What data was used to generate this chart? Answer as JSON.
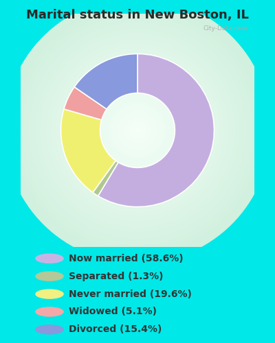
{
  "title": "Marital status in New Boston, IL",
  "title_fontsize": 13,
  "slices": [
    58.6,
    1.3,
    19.6,
    5.1,
    15.4
  ],
  "colors": [
    "#c4aee0",
    "#b0c890",
    "#f0f070",
    "#f0a0a0",
    "#8899dd"
  ],
  "labels": [
    "Now married (58.6%)",
    "Separated (1.3%)",
    "Never married (19.6%)",
    "Widowed (5.1%)",
    "Divorced (15.4%)"
  ],
  "legend_colors": [
    "#c8b4e4",
    "#b4c898",
    "#f2f080",
    "#f4a8a8",
    "#8899dd"
  ],
  "outer_bg": "#00e8e8",
  "chart_bg": "#d8f0e0",
  "watermark": "City-Data.com",
  "donut_width": 0.42,
  "start_angle": 90,
  "legend_text_color": "#333333",
  "legend_fontsize": 10
}
